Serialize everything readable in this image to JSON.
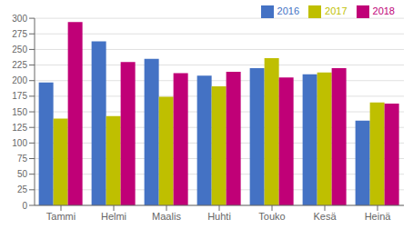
{
  "chart_data": {
    "type": "bar",
    "categories": [
      "Tammi",
      "Helmi",
      "Maalis",
      "Huhti",
      "Touko",
      "Kesä",
      "Heinä"
    ],
    "series": [
      {
        "name": "2016",
        "color": "#4472C4",
        "values": [
          197,
          263,
          235,
          208,
          220,
          210,
          136
        ]
      },
      {
        "name": "2017",
        "color": "#BFBF00",
        "values": [
          139,
          143,
          174,
          191,
          236,
          213,
          165
        ]
      },
      {
        "name": "2018",
        "color": "#C00077",
        "values": [
          294,
          230,
          212,
          214,
          205,
          220,
          163
        ]
      }
    ],
    "ylim": [
      0,
      300
    ],
    "yticks": [
      0,
      25,
      50,
      75,
      100,
      125,
      150,
      175,
      200,
      225,
      250,
      275,
      300
    ],
    "grid": true,
    "legend": "upper right"
  }
}
